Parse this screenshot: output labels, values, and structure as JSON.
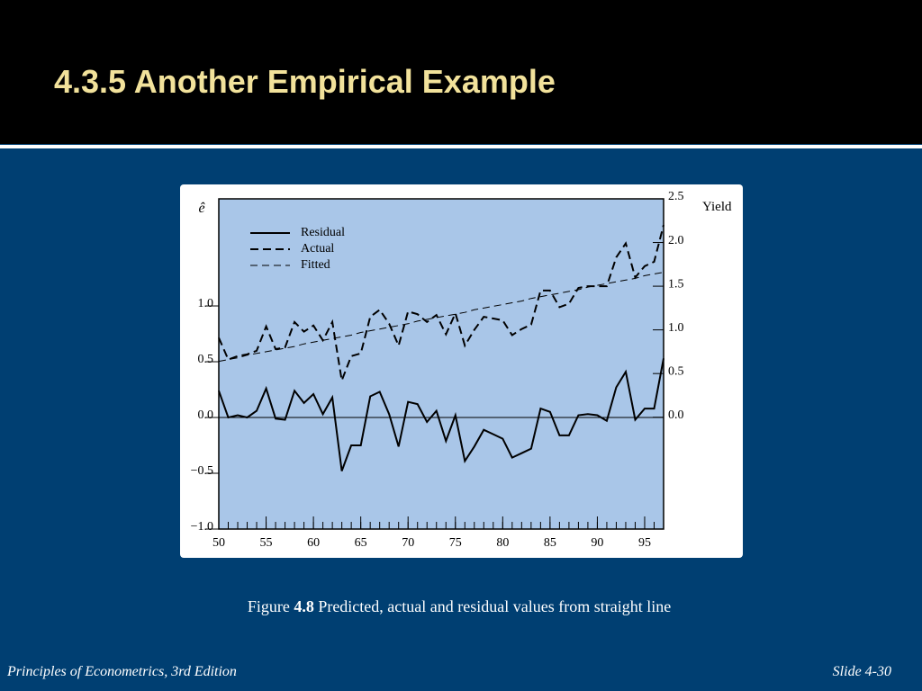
{
  "slide": {
    "title": "4.3.5 Another Empirical Example",
    "caption_prefix": "Figure",
    "caption_number": "4.8",
    "caption_text": "Predicted, actual and residual values from straight line",
    "footer_left": "Principles of Econometrics, 3rd Edition",
    "footer_right": "Slide 4-30"
  },
  "chart_data": {
    "type": "line",
    "y_label": "ê",
    "y2_label": "Yield",
    "x": [
      50,
      51,
      52,
      53,
      54,
      55,
      56,
      57,
      58,
      59,
      60,
      61,
      62,
      63,
      64,
      65,
      66,
      67,
      68,
      69,
      70,
      71,
      72,
      73,
      74,
      75,
      76,
      77,
      78,
      79,
      80,
      81,
      82,
      83,
      84,
      85,
      86,
      87,
      88,
      89,
      90,
      91,
      92,
      93,
      94,
      95,
      96,
      97
    ],
    "xlim": [
      50,
      97
    ],
    "xticks": [
      50,
      55,
      60,
      65,
      70,
      75,
      80,
      85,
      90,
      95
    ],
    "ylim": [
      -1.0,
      1.96
    ],
    "yticks": [
      {
        "value": -1.0,
        "label": "−1.0"
      },
      {
        "value": -0.5,
        "label": "−0.5"
      },
      {
        "value": 0.0,
        "label": "0.0"
      },
      0.5,
      {
        "value": 1.0,
        "label": "1.0"
      }
    ],
    "y2lim": [
      -1.28,
      2.5
    ],
    "y2ticks": [
      {
        "value": 0.0,
        "label": "0.0"
      },
      0.5,
      {
        "value": 1.0,
        "label": "1.0"
      },
      1.5,
      {
        "value": 2.0,
        "label": "2.0"
      },
      2.5
    ],
    "zero_line": true,
    "legend": "top-left",
    "series": [
      {
        "name": "Residual",
        "color": "#000000",
        "line_style": "solid",
        "values": [
          0.24,
          0.0,
          0.02,
          0.0,
          0.06,
          0.26,
          -0.01,
          -0.02,
          0.24,
          0.13,
          0.21,
          0.03,
          0.18,
          -0.48,
          -0.25,
          -0.25,
          0.19,
          0.23,
          0.03,
          -0.26,
          0.14,
          0.12,
          -0.04,
          0.06,
          -0.21,
          0.02,
          -0.39,
          -0.26,
          -0.11,
          -0.15,
          -0.19,
          -0.36,
          -0.32,
          -0.28,
          0.08,
          0.05,
          -0.16,
          -0.16,
          0.02,
          0.03,
          0.02,
          -0.03,
          0.27,
          0.41,
          -0.02,
          0.08,
          0.08,
          0.53
        ]
      },
      {
        "name": "Actual",
        "color": "#000000",
        "line_style": "dashed",
        "axis": "y2",
        "values": [
          0.91,
          0.66,
          0.7,
          0.72,
          0.76,
          1.04,
          0.78,
          0.8,
          1.09,
          0.98,
          1.05,
          0.88,
          1.09,
          0.42,
          0.7,
          0.73,
          1.15,
          1.23,
          1.07,
          0.82,
          1.21,
          1.18,
          1.09,
          1.17,
          0.95,
          1.19,
          0.82,
          1.0,
          1.15,
          1.13,
          1.11,
          0.94,
          1.01,
          1.06,
          1.45,
          1.45,
          1.26,
          1.3,
          1.48,
          1.5,
          1.5,
          1.5,
          1.83,
          1.99,
          1.6,
          1.73,
          1.78,
          2.2
        ]
      },
      {
        "name": "Fitted",
        "color": "#000000",
        "line_style": "thin-dashed",
        "axis": "y2",
        "values": [
          0.64,
          0.66,
          0.68,
          0.71,
          0.73,
          0.75,
          0.77,
          0.79,
          0.81,
          0.84,
          0.86,
          0.88,
          0.9,
          0.92,
          0.94,
          0.97,
          0.99,
          1.01,
          1.03,
          1.05,
          1.07,
          1.1,
          1.12,
          1.14,
          1.16,
          1.18,
          1.2,
          1.23,
          1.25,
          1.27,
          1.29,
          1.31,
          1.33,
          1.36,
          1.38,
          1.4,
          1.42,
          1.44,
          1.46,
          1.49,
          1.51,
          1.53,
          1.55,
          1.57,
          1.59,
          1.62,
          1.64,
          1.66
        ]
      }
    ]
  }
}
